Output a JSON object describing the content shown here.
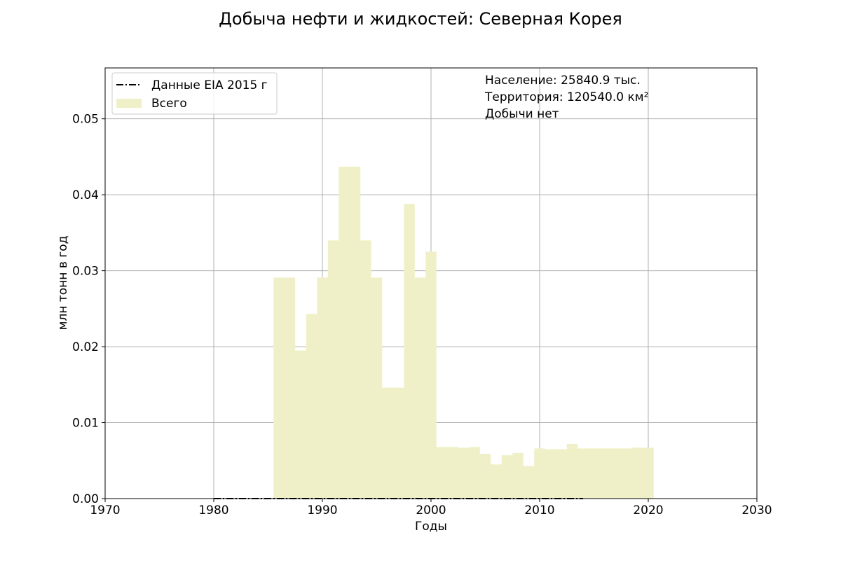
{
  "chart_data": {
    "type": "area",
    "title": "Добыча нефти и жидкостей: Северная Корея",
    "xlabel": "Годы",
    "ylabel": "млн тонн в год",
    "xlim": [
      1970,
      2030
    ],
    "ylim": [
      0,
      0.0567
    ],
    "x_ticks": [
      "1970",
      "1980",
      "1990",
      "2000",
      "2010",
      "2020",
      "2030"
    ],
    "y_ticks": [
      "0.00",
      "0.01",
      "0.02",
      "0.03",
      "0.04",
      "0.05"
    ],
    "grid": true,
    "legend_placement": "top-left",
    "legend": [
      {
        "label": "Данные EIA 2015 г",
        "style": "dash-dot",
        "color": "#000000"
      },
      {
        "label": "Всего",
        "style": "fill",
        "color": "#f0f0c8"
      }
    ],
    "annotations": [
      "Население: 25840.9 тыс.",
      "Территория: 120540.0 км²",
      "Добычи нет"
    ],
    "series": [
      {
        "name": "Всего",
        "style": "step-fill",
        "color": "#f0f0c8",
        "points": [
          [
            1985.5,
            0.0291
          ],
          [
            1987.5,
            0.0195
          ],
          [
            1988.5,
            0.0243
          ],
          [
            1989.5,
            0.0291
          ],
          [
            1990.5,
            0.034
          ],
          [
            1991.5,
            0.0437
          ],
          [
            1993.5,
            0.034
          ],
          [
            1994.5,
            0.0291
          ],
          [
            1995.5,
            0.0146
          ],
          [
            1997.5,
            0.0388
          ],
          [
            1998.5,
            0.0291
          ],
          [
            1999.5,
            0.0325
          ],
          [
            2000.5,
            0.0068
          ],
          [
            2002.5,
            0.0067
          ],
          [
            2003.5,
            0.0068
          ],
          [
            2004.5,
            0.0059
          ],
          [
            2005.5,
            0.0045
          ],
          [
            2006.5,
            0.0057
          ],
          [
            2007.5,
            0.006
          ],
          [
            2008.5,
            0.0043
          ],
          [
            2009.5,
            0.0066
          ],
          [
            2010.5,
            0.0065
          ],
          [
            2012.5,
            0.0072
          ],
          [
            2013.5,
            0.0066
          ],
          [
            2018.5,
            0.0067
          ],
          [
            2020.5,
            0.0
          ]
        ]
      },
      {
        "name": "Данные EIA 2015 г",
        "style": "dash-dot",
        "color": "#000000",
        "x": [
          1980,
          2014
        ],
        "y": [
          0,
          0
        ]
      }
    ]
  }
}
